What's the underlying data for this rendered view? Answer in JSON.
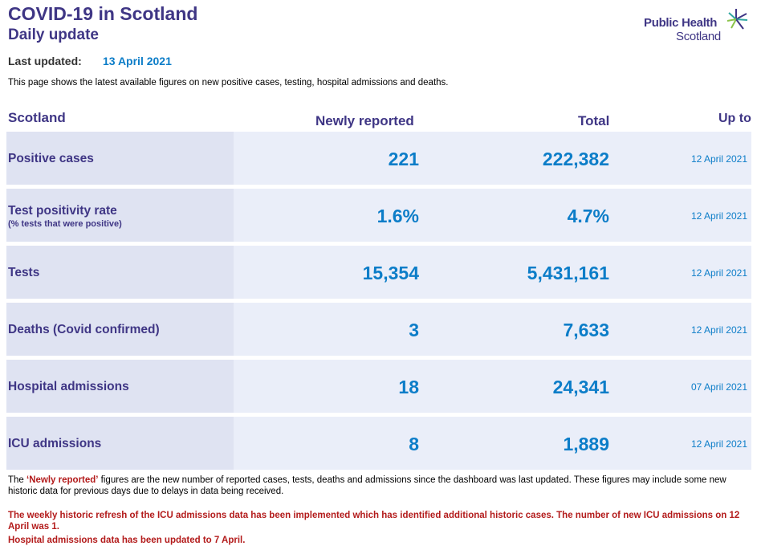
{
  "header": {
    "title": "COVID-19 in Scotland",
    "subtitle": "Daily update",
    "logo_line1": "Public Health",
    "logo_line2": "Scotland",
    "last_updated_label": "Last updated:",
    "last_updated_value": "13 April 2021",
    "intro": "This page shows the latest available figures on new positive cases, testing, hospital admissions and deaths."
  },
  "table": {
    "col_scotland": "Scotland",
    "col_new": "Newly reported",
    "col_total": "Total",
    "col_upto": "Up to",
    "rows": [
      {
        "label": "Positive cases",
        "sublabel": "",
        "new": "221",
        "total": "222,382",
        "upto": "12 April 2021"
      },
      {
        "label": "Test positivity rate",
        "sublabel": "(% tests that were positive)",
        "new": "1.6%",
        "total": "4.7%",
        "upto": "12 April 2021"
      },
      {
        "label": "Tests",
        "sublabel": "",
        "new": "15,354",
        "total": "5,431,161",
        "upto": "12 April 2021"
      },
      {
        "label": "Deaths (Covid confirmed)",
        "sublabel": "",
        "new": "3",
        "total": "7,633",
        "upto": "12 April 2021"
      },
      {
        "label": "Hospital admissions",
        "sublabel": "",
        "new": "18",
        "total": "24,341",
        "upto": "07 April 2021"
      },
      {
        "label": "ICU admissions",
        "sublabel": "",
        "new": "8",
        "total": "1,889",
        "upto": "12 April 2021"
      }
    ]
  },
  "notes": {
    "note_prefix": "The ",
    "note_highlight": "‘Newly reported’",
    "note_suffix": " figures are the new number of reported cases, tests, deaths and admissions since the dashboard was last updated. These figures may include some new historic data for previous days due to delays in data being received.",
    "icu_note": "The weekly historic refresh of the ICU admissions data has been implemented which has identified additional historic cases. The number of new ICU admissions on 12 April was 1.",
    "hospital_note": "Hospital admissions data has been updated to 7 April."
  },
  "colors": {
    "purple": "#3f3685",
    "blue": "#0c7dc8",
    "red": "#b31b1b",
    "label_bg": "#dfe3f2",
    "row_bg": "#eaeef9"
  },
  "icons": {
    "logo": "public-health-scotland-star-icon"
  }
}
